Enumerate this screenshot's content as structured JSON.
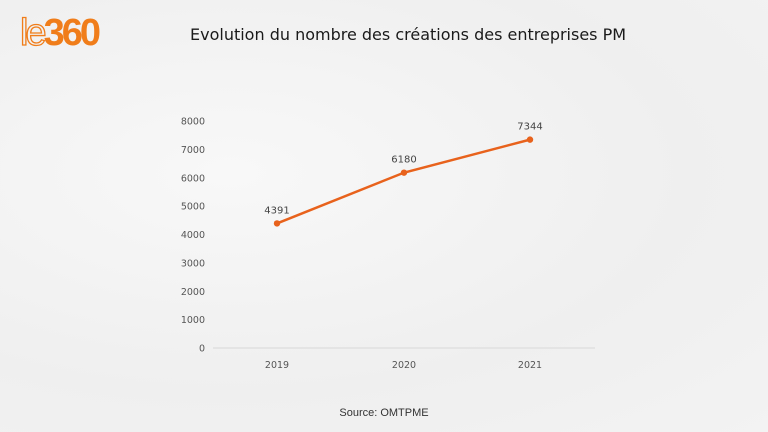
{
  "logo": {
    "prefix": "le",
    "number": "360"
  },
  "title": "Evolution du nombre des créations des entreprises PM",
  "source": "Source: OMTPME",
  "colors": {
    "accent": "#e8621c",
    "logo": "#f07d1a"
  },
  "chart_data": {
    "type": "line",
    "title": "Evolution du nombre des créations des entreprises PM",
    "categories": [
      "2019",
      "2020",
      "2021"
    ],
    "values": [
      4391,
      6180,
      7344
    ],
    "data_labels": [
      "4391",
      "6180",
      "7344"
    ],
    "ylim": [
      0,
      8000
    ],
    "yticks": [
      "0",
      "1000",
      "2000",
      "3000",
      "4000",
      "5000",
      "6000",
      "7000",
      "8000"
    ],
    "xlabel": "",
    "ylabel": "",
    "grid": false,
    "legend": "none"
  }
}
